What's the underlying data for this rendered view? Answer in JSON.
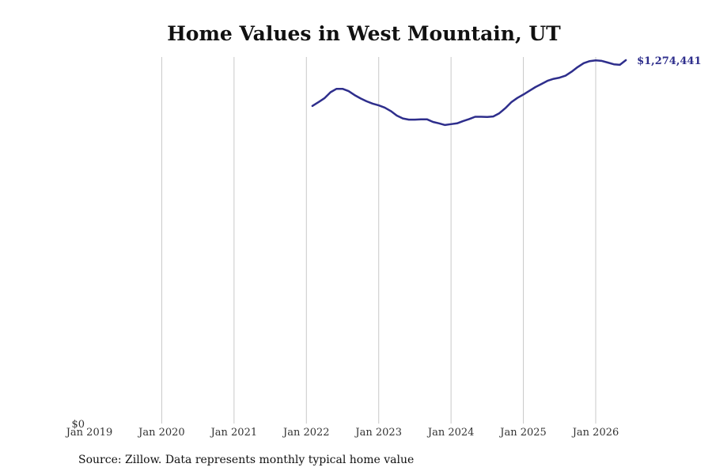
{
  "chart_data": {
    "type": "line",
    "title": "Home Values in West Mountain, UT",
    "xlabel": "",
    "ylabel": "",
    "x_ticks": [
      "Jan 2019",
      "Jan 2020",
      "Jan 2021",
      "Jan 2022",
      "Jan 2023",
      "Jan 2024",
      "Jan 2025",
      "Jan 2026"
    ],
    "y_ticks": [
      "$0"
    ],
    "ylim": [
      0,
      1274441
    ],
    "grid": "vertical",
    "line_color": "#2e2e8c",
    "grid_color": "#c8c8c8",
    "end_label": "$1,274,441",
    "series": [
      {
        "x": [
          "2022-02",
          "2022-03",
          "2022-04",
          "2022-05",
          "2022-06",
          "2022-07",
          "2022-08",
          "2022-09",
          "2022-10",
          "2022-11",
          "2022-12",
          "2023-01",
          "2023-02",
          "2023-03",
          "2023-04",
          "2023-05",
          "2023-06",
          "2023-07",
          "2023-08",
          "2023-09",
          "2023-10",
          "2023-11",
          "2023-12",
          "2024-01",
          "2024-02",
          "2024-03",
          "2024-04",
          "2024-05",
          "2024-06",
          "2024-07",
          "2024-08",
          "2024-09",
          "2024-10",
          "2024-11",
          "2024-12",
          "2025-01",
          "2025-02",
          "2025-03",
          "2025-04",
          "2025-05",
          "2025-06",
          "2025-07",
          "2025-08",
          "2025-09",
          "2025-10",
          "2025-11",
          "2025-12",
          "2026-01",
          "2026-02",
          "2026-03",
          "2026-04",
          "2026-05",
          "2026-06"
        ],
        "values": [
          1114000,
          1127000,
          1141000,
          1162000,
          1174000,
          1174000,
          1166000,
          1152000,
          1140000,
          1130000,
          1122000,
          1116000,
          1108000,
          1096000,
          1080000,
          1070000,
          1066000,
          1066000,
          1067000,
          1067000,
          1058000,
          1053000,
          1047000,
          1050000,
          1053000,
          1061000,
          1068000,
          1076000,
          1076000,
          1075000,
          1077000,
          1088000,
          1106000,
          1127000,
          1142000,
          1154000,
          1167000,
          1180000,
          1191000,
          1202000,
          1209000,
          1213000,
          1220000,
          1234000,
          1250000,
          1264000,
          1271000,
          1274000,
          1272000,
          1266000,
          1260000,
          1258000,
          1274441
        ]
      }
    ],
    "note": "Source: Zillow. Data represents monthly typical home value"
  }
}
